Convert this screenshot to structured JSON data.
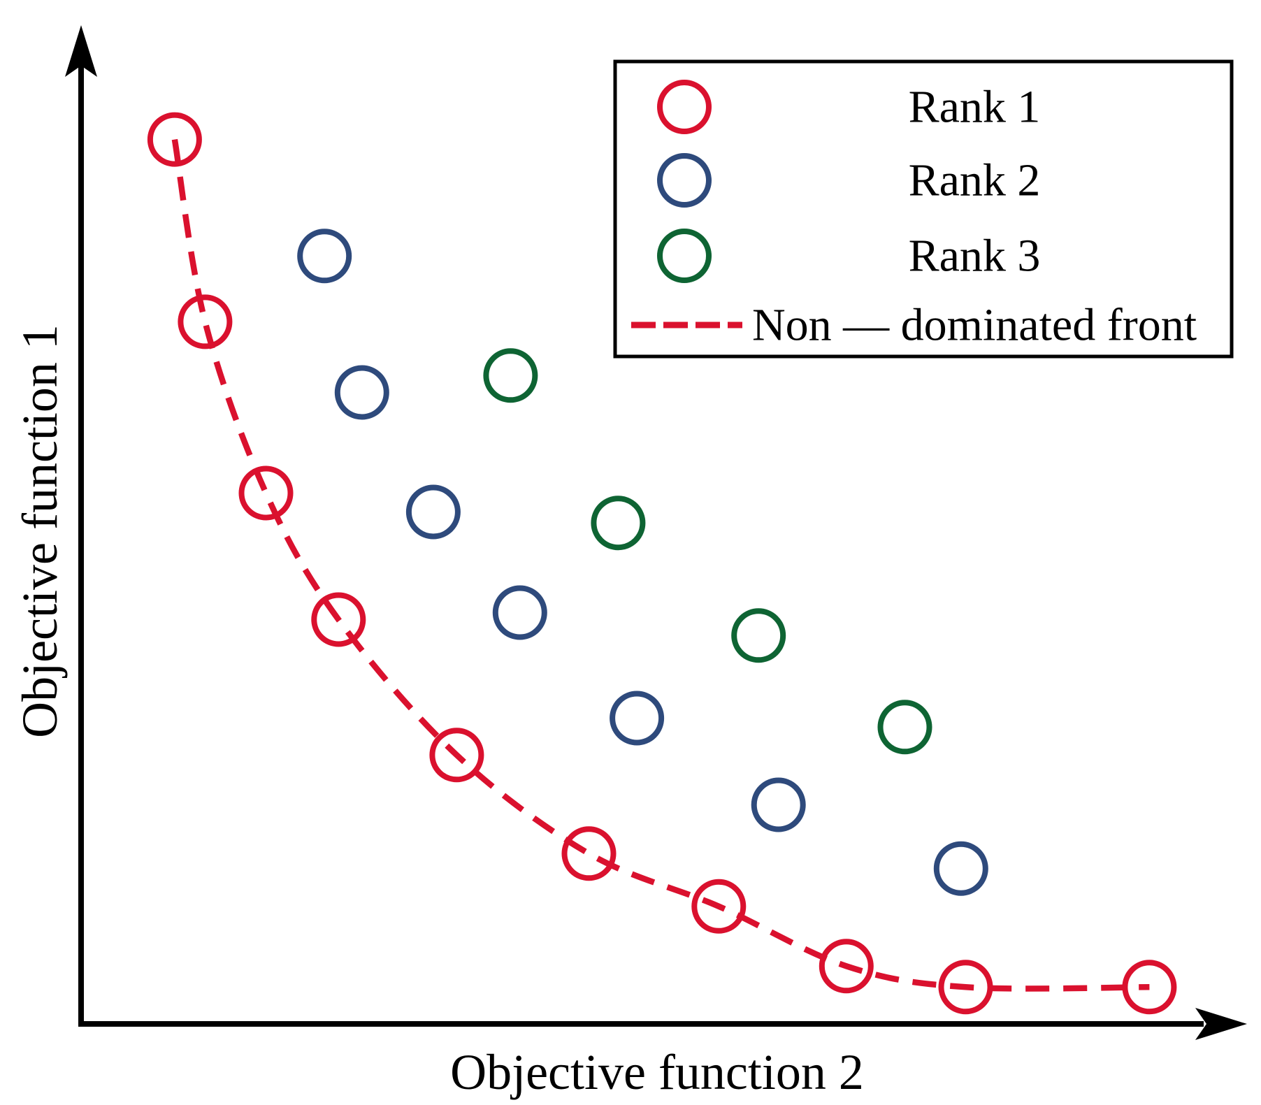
{
  "figure": {
    "background": "#ffffff"
  },
  "chart_data": {
    "type": "scatter",
    "title": "",
    "xlabel": "Objective function 2",
    "ylabel": "Objective function 1",
    "xlim": [
      0,
      10
    ],
    "ylim": [
      0,
      10
    ],
    "grid": false,
    "axes_arrows": true,
    "axis_color": "#000000",
    "series": [
      {
        "name": "Rank 1",
        "color": "#da112e",
        "marker": "open-circle",
        "points": [
          [
            0.8,
            8.88
          ],
          [
            1.06,
            7.05
          ],
          [
            1.58,
            5.33
          ],
          [
            2.2,
            4.06
          ],
          [
            3.21,
            2.7
          ],
          [
            4.34,
            1.71
          ],
          [
            5.45,
            1.18
          ],
          [
            6.54,
            0.58
          ],
          [
            7.56,
            0.37
          ],
          [
            9.13,
            0.37
          ]
        ]
      },
      {
        "name": "Rank 2",
        "color": "#2e4a7c",
        "marker": "open-circle",
        "points": [
          [
            2.08,
            7.71
          ],
          [
            2.4,
            6.34
          ],
          [
            3.01,
            5.14
          ],
          [
            3.75,
            4.13
          ],
          [
            4.75,
            3.07
          ],
          [
            5.96,
            2.2
          ],
          [
            7.52,
            1.56
          ]
        ]
      },
      {
        "name": "Rank 3",
        "color": "#0e6433",
        "marker": "open-circle",
        "points": [
          [
            3.67,
            6.51
          ],
          [
            4.59,
            5.03
          ],
          [
            5.79,
            3.9
          ],
          [
            7.04,
            2.98
          ]
        ]
      }
    ],
    "front": {
      "name": "Non — dominated front",
      "color": "#da112e",
      "style": "dashed",
      "through_series": "Rank 1"
    },
    "legend": {
      "position": "upper right",
      "entries": [
        {
          "label": "Rank 1",
          "marker": "circle",
          "color": "#da112e"
        },
        {
          "label": "Rank 2",
          "marker": "circle",
          "color": "#2e4a7c"
        },
        {
          "label": "Rank 3",
          "marker": "circle",
          "color": "#0e6433"
        },
        {
          "label": "Non — dominated front",
          "marker": "dashed-line",
          "color": "#da112e"
        }
      ]
    }
  }
}
